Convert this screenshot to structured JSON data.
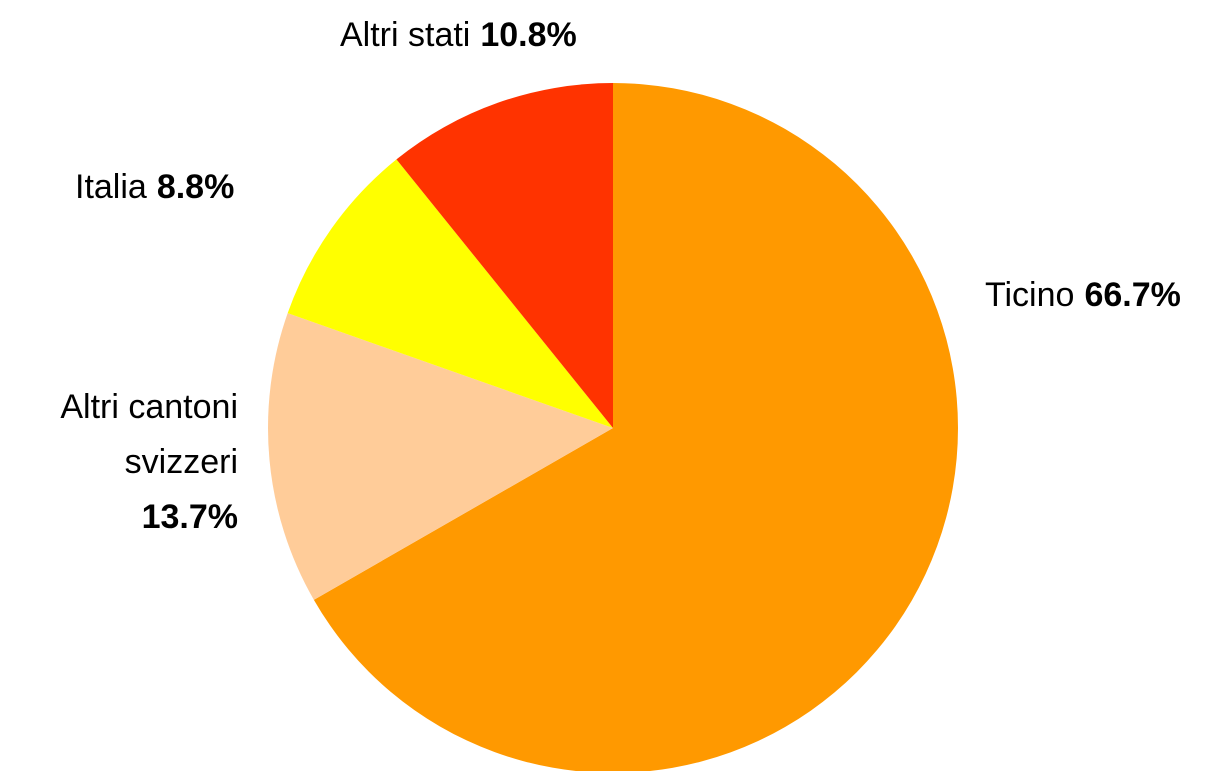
{
  "chart_data": {
    "type": "pie",
    "categories": [
      "Ticino",
      "Altri cantoni svizzeri",
      "Italia",
      "Altri stati"
    ],
    "values": [
      66.7,
      13.7,
      8.8,
      10.8
    ],
    "value_labels": [
      "66.7%",
      "13.7%",
      "8.8%",
      "10.8%"
    ],
    "colors": [
      "#ff9900",
      "#ffcc99",
      "#ffff00",
      "#ff3300"
    ]
  }
}
